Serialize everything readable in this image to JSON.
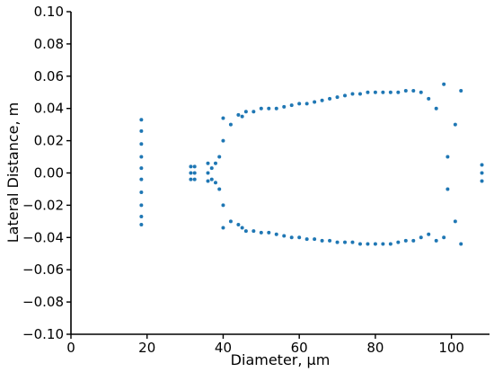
{
  "chart_data": {
    "type": "scatter",
    "title": "",
    "xlabel": "Diameter, μm",
    "ylabel": "Lateral Distance, m",
    "xlim": [
      0,
      110
    ],
    "ylim": [
      -0.1,
      0.1
    ],
    "xticks": [
      0,
      20,
      40,
      60,
      80,
      100
    ],
    "xtick_labels": [
      "0",
      "20",
      "40",
      "60",
      "80",
      "100"
    ],
    "yticks": [
      -0.1,
      -0.08,
      -0.06,
      -0.04,
      -0.02,
      0.0,
      0.02,
      0.04,
      0.06,
      0.08,
      0.1
    ],
    "ytick_labels": [
      "−0.10",
      "−0.08",
      "−0.06",
      "−0.04",
      "−0.02",
      "0.00",
      "0.02",
      "0.04",
      "0.06",
      "0.08",
      "0.10"
    ],
    "grid": false,
    "color": "#1f77b4",
    "series": [
      {
        "points": [
          [
            18.5,
            -0.032
          ],
          [
            18.5,
            -0.027
          ],
          [
            18.5,
            -0.02
          ],
          [
            18.5,
            -0.012
          ],
          [
            18.5,
            -0.004
          ],
          [
            18.5,
            0.003
          ],
          [
            18.5,
            0.01
          ],
          [
            18.5,
            0.018
          ],
          [
            18.5,
            0.026
          ],
          [
            18.5,
            0.033
          ],
          [
            31.5,
            -0.004
          ],
          [
            31.5,
            0.0
          ],
          [
            31.5,
            0.004
          ],
          [
            32.5,
            -0.004
          ],
          [
            32.5,
            0.0
          ],
          [
            32.5,
            0.004
          ],
          [
            36.0,
            -0.005
          ],
          [
            36.0,
            0.0
          ],
          [
            36.0,
            0.006
          ],
          [
            37.0,
            -0.004
          ],
          [
            37.0,
            0.003
          ],
          [
            38.0,
            -0.006
          ],
          [
            38.0,
            0.006
          ],
          [
            39.0,
            -0.01
          ],
          [
            39.0,
            0.01
          ],
          [
            40.0,
            -0.02
          ],
          [
            40.0,
            0.02
          ],
          [
            40.0,
            -0.034
          ],
          [
            40.0,
            0.034
          ],
          [
            42.0,
            -0.03
          ],
          [
            42.0,
            0.03
          ],
          [
            44.0,
            -0.032
          ],
          [
            44.0,
            0.036
          ],
          [
            45.0,
            -0.034
          ],
          [
            45.0,
            0.035
          ],
          [
            46.0,
            -0.036
          ],
          [
            46.0,
            0.038
          ],
          [
            48.0,
            -0.036
          ],
          [
            48.0,
            0.038
          ],
          [
            50.0,
            -0.037
          ],
          [
            50.0,
            0.04
          ],
          [
            52.0,
            -0.037
          ],
          [
            52.0,
            0.04
          ],
          [
            54.0,
            -0.038
          ],
          [
            54.0,
            0.04
          ],
          [
            56.0,
            -0.039
          ],
          [
            56.0,
            0.041
          ],
          [
            58.0,
            -0.04
          ],
          [
            58.0,
            0.042
          ],
          [
            60.0,
            -0.04
          ],
          [
            60.0,
            0.043
          ],
          [
            62.0,
            -0.041
          ],
          [
            62.0,
            0.043
          ],
          [
            64.0,
            -0.041
          ],
          [
            64.0,
            0.044
          ],
          [
            66.0,
            -0.042
          ],
          [
            66.0,
            0.045
          ],
          [
            68.0,
            -0.042
          ],
          [
            68.0,
            0.046
          ],
          [
            70.0,
            -0.043
          ],
          [
            70.0,
            0.047
          ],
          [
            72.0,
            -0.043
          ],
          [
            72.0,
            0.048
          ],
          [
            74.0,
            -0.043
          ],
          [
            74.0,
            0.049
          ],
          [
            76.0,
            -0.044
          ],
          [
            76.0,
            0.049
          ],
          [
            78.0,
            -0.044
          ],
          [
            78.0,
            0.05
          ],
          [
            80.0,
            -0.044
          ],
          [
            80.0,
            0.05
          ],
          [
            82.0,
            -0.044
          ],
          [
            82.0,
            0.05
          ],
          [
            84.0,
            -0.044
          ],
          [
            84.0,
            0.05
          ],
          [
            86.0,
            -0.043
          ],
          [
            86.0,
            0.05
          ],
          [
            88.0,
            -0.042
          ],
          [
            88.0,
            0.051
          ],
          [
            90.0,
            -0.042
          ],
          [
            90.0,
            0.051
          ],
          [
            92.0,
            -0.04
          ],
          [
            92.0,
            0.05
          ],
          [
            94.0,
            -0.038
          ],
          [
            94.0,
            0.046
          ],
          [
            96.0,
            -0.042
          ],
          [
            96.0,
            0.04
          ],
          [
            98.0,
            -0.04
          ],
          [
            98.0,
            0.055
          ],
          [
            99.0,
            -0.01
          ],
          [
            99.0,
            0.01
          ],
          [
            101.0,
            -0.03
          ],
          [
            101.0,
            0.03
          ],
          [
            102.5,
            -0.044
          ],
          [
            102.5,
            0.051
          ],
          [
            108.0,
            -0.005
          ],
          [
            108.0,
            0.0
          ],
          [
            108.0,
            0.005
          ]
        ]
      }
    ]
  }
}
